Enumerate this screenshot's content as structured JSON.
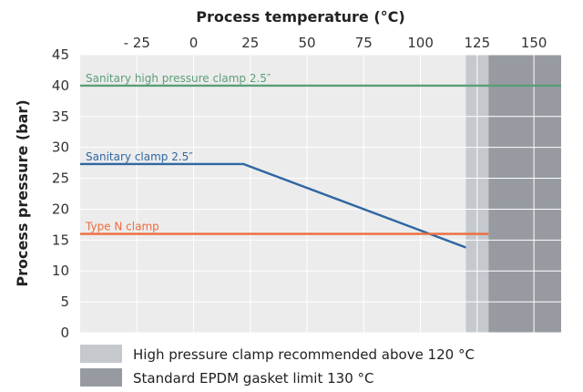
{
  "chart_data": {
    "type": "line",
    "title": "Process temperature (°C)",
    "xlabel": "Process temperature (°C)",
    "ylabel": "Process pressure (bar)",
    "xlim": [
      -50,
      162
    ],
    "ylim": [
      0,
      45
    ],
    "x_ticks": [
      {
        "value": -25,
        "label": "- 25"
      },
      {
        "value": 0,
        "label": "0"
      },
      {
        "value": 25,
        "label": "25"
      },
      {
        "value": 50,
        "label": "50"
      },
      {
        "value": 75,
        "label": "75"
      },
      {
        "value": 100,
        "label": "100"
      },
      {
        "value": 125,
        "label": "125"
      },
      {
        "value": 150,
        "label": "150"
      }
    ],
    "y_ticks": [
      0,
      5,
      10,
      15,
      20,
      25,
      30,
      35,
      40,
      45
    ],
    "grid": true,
    "x_axis_position": "top",
    "series": [
      {
        "name": "Sanitary high pressure clamp 2.5″",
        "color": "#5a9e78",
        "points": [
          [
            -50,
            40
          ],
          [
            162,
            40
          ]
        ]
      },
      {
        "name": "Sanitary clamp 2.5″",
        "color": "#2f67a3",
        "points": [
          [
            -50,
            27.3
          ],
          [
            22,
            27.3
          ],
          [
            120,
            13.8
          ]
        ]
      },
      {
        "name": "Type N clamp",
        "color": "#ec6d3e",
        "points": [
          [
            -50,
            16
          ],
          [
            130,
            16
          ]
        ]
      }
    ],
    "regions": [
      {
        "name": "High pressure clamp recommended above 120 °C",
        "x0": 120,
        "x1": 130,
        "color": "#c5c8cd"
      },
      {
        "name": "Standard EPDM gasket limit 130 °C",
        "x0": 130,
        "x1": 162,
        "color": "#979ba1"
      }
    ],
    "legend_position": "bottom-left"
  }
}
